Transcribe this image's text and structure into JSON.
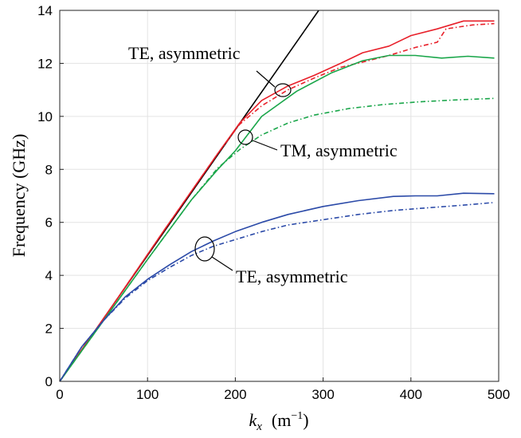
{
  "chart_data": {
    "type": "line",
    "title": "",
    "xlabel": {
      "base": "k",
      "sub": "x",
      "unit_open": "(m",
      "unit_sup": "−1",
      "unit_close": ")"
    },
    "ylabel": "Frequency (GHz)",
    "xlim": [
      0,
      500
    ],
    "ylim": [
      0,
      14
    ],
    "xticks": [
      0,
      100,
      200,
      300,
      400,
      500
    ],
    "yticks": [
      0,
      2,
      4,
      6,
      8,
      10,
      12,
      14
    ],
    "grid": true,
    "legend": "none",
    "colors": {
      "black": "#000000",
      "red": "#e8202a",
      "green": "#1aa64a",
      "blue": "#2b4aa8"
    },
    "series": [
      {
        "color": "black",
        "style": "solid",
        "x": [
          0,
          100,
          200,
          295
        ],
        "y": [
          0,
          4.75,
          9.5,
          14.0
        ]
      },
      {
        "color": "red",
        "style": "solid",
        "x": [
          0,
          60,
          120,
          180,
          205,
          230,
          260,
          290,
          320,
          345,
          375,
          400,
          430,
          460,
          495
        ],
        "y": [
          0,
          2.85,
          5.75,
          8.6,
          9.75,
          10.6,
          11.15,
          11.55,
          12.0,
          12.4,
          12.65,
          13.05,
          13.3,
          13.6,
          13.6
        ]
      },
      {
        "color": "red",
        "style": "dashdot",
        "x": [
          0,
          60,
          120,
          180,
          205,
          230,
          260,
          290,
          320,
          345,
          375,
          405,
          430,
          440,
          470,
          495
        ],
        "y": [
          0,
          2.85,
          5.75,
          8.6,
          9.7,
          10.4,
          11.0,
          11.45,
          11.85,
          12.05,
          12.3,
          12.6,
          12.8,
          13.3,
          13.45,
          13.5
        ]
      },
      {
        "color": "green",
        "style": "solid",
        "x": [
          0,
          50,
          100,
          150,
          180,
          200,
          230,
          270,
          310,
          345,
          375,
          405,
          435,
          465,
          495
        ],
        "y": [
          0,
          2.3,
          4.6,
          6.85,
          8.0,
          8.7,
          10.0,
          10.95,
          11.65,
          12.1,
          12.3,
          12.3,
          12.2,
          12.27,
          12.2
        ]
      },
      {
        "color": "green",
        "style": "dashdot",
        "x": [
          0,
          50,
          100,
          150,
          180,
          205,
          230,
          260,
          290,
          330,
          370,
          410,
          450,
          495
        ],
        "y": [
          0,
          2.3,
          4.6,
          6.85,
          8.05,
          8.75,
          9.3,
          9.75,
          10.05,
          10.3,
          10.45,
          10.55,
          10.62,
          10.68
        ]
      },
      {
        "color": "blue",
        "style": "solid",
        "x": [
          0,
          25,
          50,
          75,
          100,
          125,
          150,
          175,
          200,
          230,
          260,
          300,
          340,
          380,
          405,
          430,
          460,
          495
        ],
        "y": [
          0,
          1.3,
          2.3,
          3.2,
          3.85,
          4.4,
          4.9,
          5.3,
          5.65,
          6.0,
          6.3,
          6.6,
          6.82,
          6.98,
          7.0,
          7.0,
          7.1,
          7.08
        ]
      },
      {
        "color": "blue",
        "style": "dashdot",
        "x": [
          0,
          25,
          50,
          75,
          100,
          125,
          150,
          175,
          200,
          230,
          260,
          300,
          340,
          380,
          420,
          460,
          495
        ],
        "y": [
          0,
          1.3,
          2.3,
          3.15,
          3.8,
          4.3,
          4.75,
          5.1,
          5.35,
          5.65,
          5.9,
          6.1,
          6.3,
          6.45,
          6.55,
          6.65,
          6.75
        ]
      }
    ],
    "annotations": [
      {
        "text": "TE, asymmetric",
        "x": 160,
        "y": 12.3
      },
      {
        "text": "TM, asymmetric",
        "x": 250,
        "y": 8.6
      },
      {
        "text": "TE, asymmetric",
        "x": 204,
        "y": 3.8
      }
    ]
  }
}
